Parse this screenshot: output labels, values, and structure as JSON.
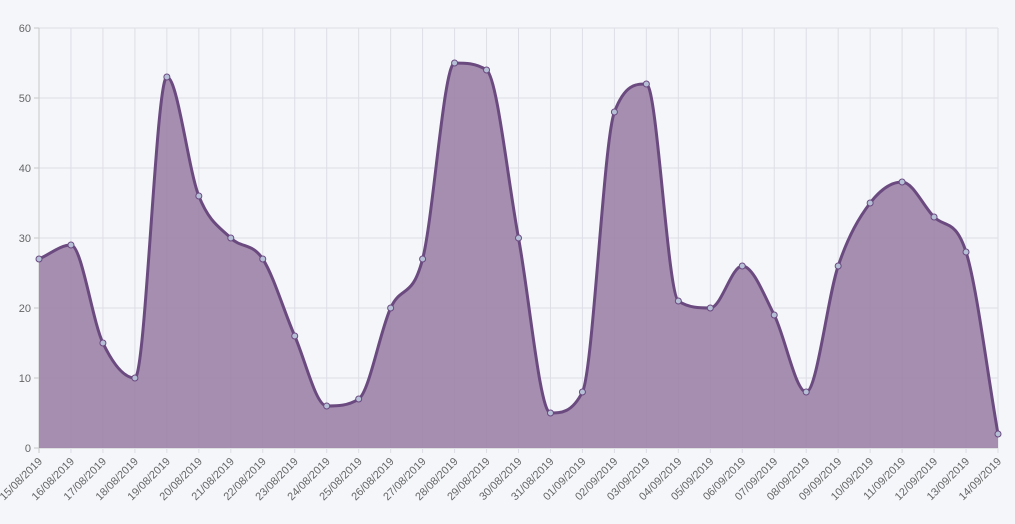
{
  "chart_data": {
    "type": "area",
    "title": "",
    "xlabel": "",
    "ylabel": "",
    "ylim": [
      0,
      60
    ],
    "yticks": [
      0,
      10,
      20,
      30,
      40,
      50,
      60
    ],
    "grid": true,
    "legend": "none",
    "categories": [
      "15/08/2019",
      "16/08/2019",
      "17/08/2019",
      "18/08/2019",
      "19/08/2019",
      "20/08/2019",
      "21/08/2019",
      "22/08/2019",
      "23/08/2019",
      "24/08/2019",
      "25/08/2019",
      "26/08/2019",
      "27/08/2019",
      "28/08/2019",
      "29/08/2019",
      "30/08/2019",
      "31/08/2019",
      "01/09/2019",
      "02/09/2019",
      "03/09/2019",
      "04/09/2019",
      "05/09/2019",
      "06/09/2019",
      "07/09/2019",
      "08/09/2019",
      "09/09/2019",
      "10/09/2019",
      "11/09/2019",
      "12/09/2019",
      "13/09/2019",
      "14/09/2019"
    ],
    "series": [
      {
        "values": [
          27,
          29,
          15,
          10,
          53,
          36,
          30,
          27,
          16,
          6,
          7,
          20,
          27,
          55,
          54,
          30,
          5,
          8,
          48,
          52,
          21,
          20,
          26,
          19,
          8,
          26,
          35,
          38,
          33,
          28,
          2
        ],
        "line_color": "#6b4a80",
        "fill_color": "#9e84a9",
        "point_color": "#b5c0d6"
      }
    ]
  }
}
